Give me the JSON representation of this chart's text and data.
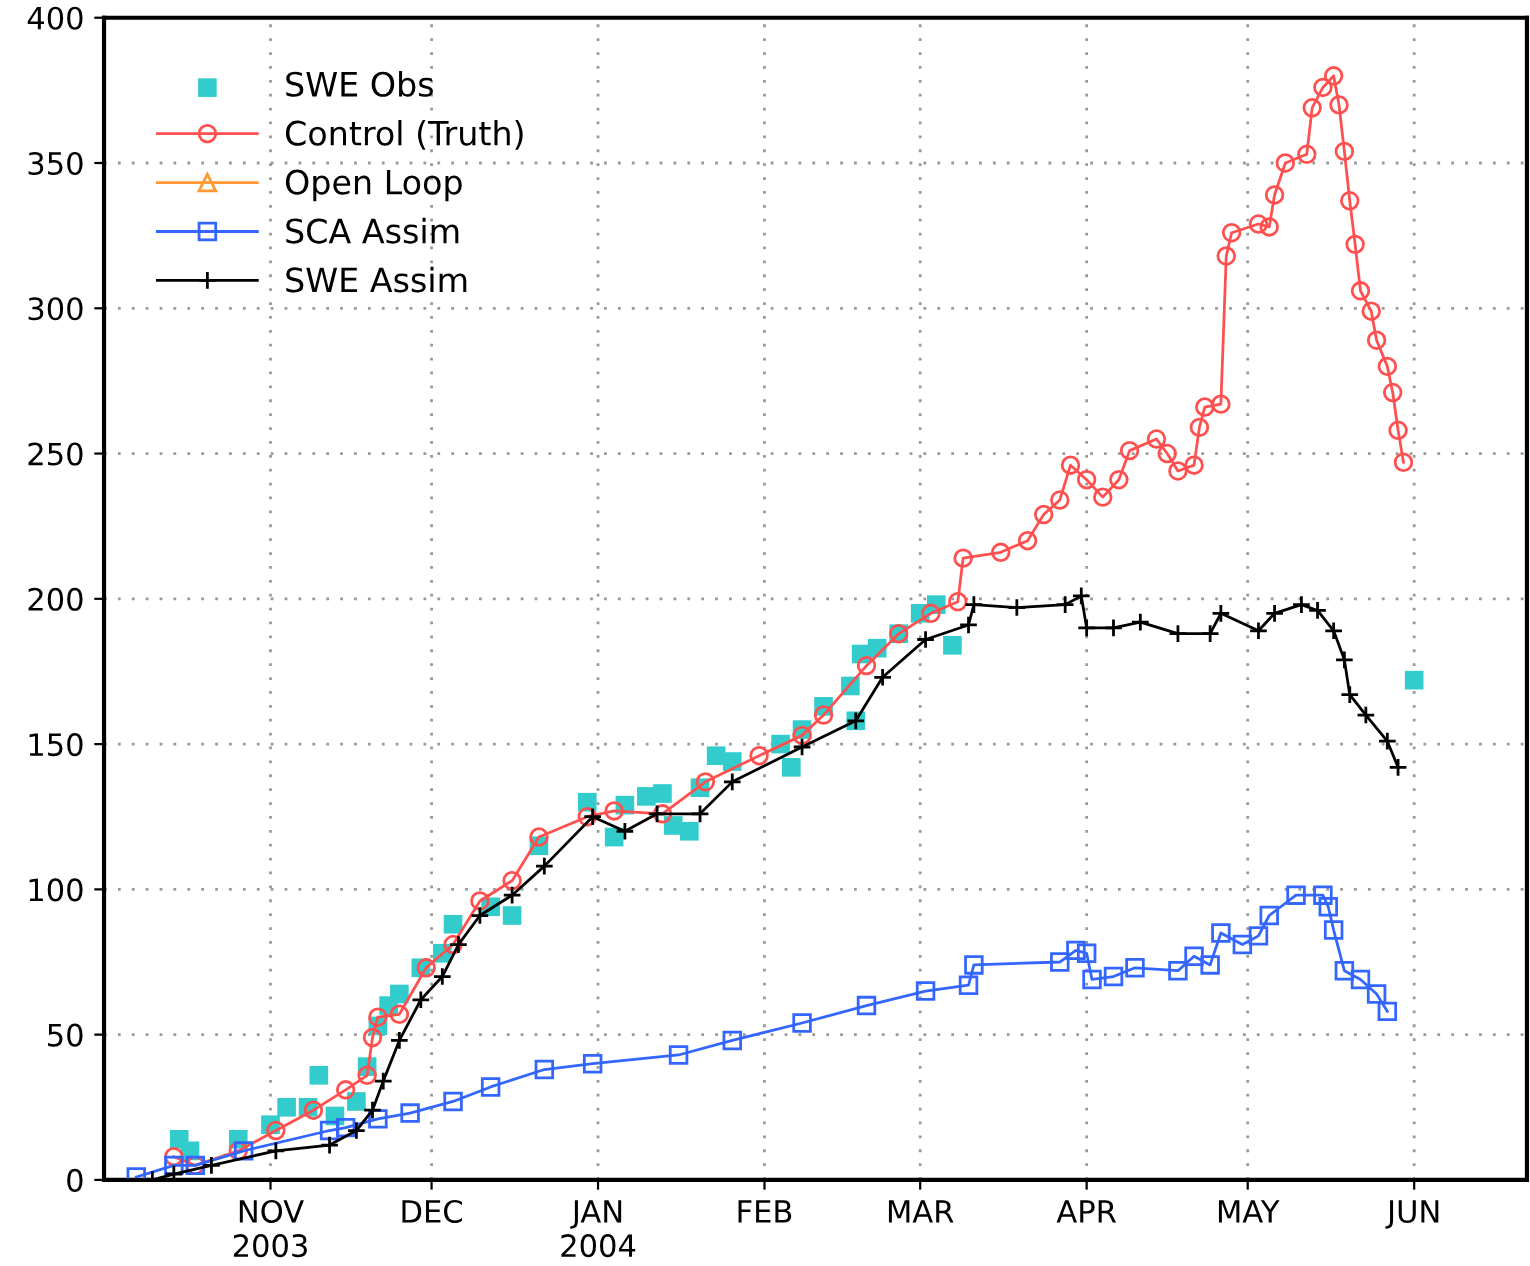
{
  "chart_data": {
    "type": "line",
    "xlim": [
      "2003-10-01",
      "2004-06-22"
    ],
    "xticks": [
      {
        "value": "2003-11-01",
        "label": "NOV\n2003"
      },
      {
        "value": "2003-12-01",
        "label": "DEC"
      },
      {
        "value": "2004-01-01",
        "label": "JAN\n2004"
      },
      {
        "value": "2004-02-01",
        "label": "FEB"
      },
      {
        "value": "2004-03-01",
        "label": "MAR"
      },
      {
        "value": "2004-04-01",
        "label": "APR"
      },
      {
        "value": "2004-05-01",
        "label": "MAY"
      },
      {
        "value": "2004-06-01",
        "label": "JUN"
      }
    ],
    "ylim": [
      0,
      400
    ],
    "yticks": [
      0,
      50,
      100,
      150,
      200,
      250,
      300,
      350,
      400
    ],
    "grid": true,
    "legend": "top left",
    "series": [
      {
        "name": "SWE Obs",
        "type": "scatter",
        "marker": "square",
        "color": "#33cccc",
        "x": [
          "2003-10-15",
          "2003-10-17",
          "2003-10-26",
          "2003-11-01",
          "2003-11-04",
          "2003-11-08",
          "2003-11-10",
          "2003-11-13",
          "2003-11-17",
          "2003-11-19",
          "2003-11-21",
          "2003-11-23",
          "2003-11-25",
          "2003-11-29",
          "2003-12-03",
          "2003-12-05",
          "2003-12-12",
          "2003-12-16",
          "2003-12-21",
          "2003-12-30",
          "2004-01-04",
          "2004-01-06",
          "2004-01-10",
          "2004-01-13",
          "2004-01-15",
          "2004-01-18",
          "2004-01-20",
          "2004-01-23",
          "2004-01-26",
          "2004-02-04",
          "2004-02-06",
          "2004-02-08",
          "2004-02-12",
          "2004-02-17",
          "2004-02-18",
          "2004-02-19",
          "2004-02-22",
          "2004-02-26",
          "2004-03-01",
          "2004-03-04",
          "2004-03-07",
          "2004-06-01"
        ],
        "values": [
          14,
          10,
          14,
          19,
          25,
          25,
          36,
          22,
          27,
          39,
          53,
          60,
          64,
          73,
          78,
          88,
          94,
          91,
          115,
          130,
          118,
          129,
          132,
          133,
          122,
          120,
          135,
          146,
          144,
          150,
          142,
          155,
          163,
          170,
          158,
          181,
          183,
          188,
          195,
          198,
          184,
          172
        ]
      },
      {
        "name": "Control (Truth)",
        "marker": "circle",
        "color": "#ff5050",
        "x": [
          "2003-10-14",
          "2003-10-18",
          "2003-10-26",
          "2003-11-02",
          "2003-11-09",
          "2003-11-15",
          "2003-11-19",
          "2003-11-20",
          "2003-11-21",
          "2003-11-25",
          "2003-11-30",
          "2003-12-05",
          "2003-12-10",
          "2003-12-16",
          "2003-12-21",
          "2003-12-30",
          "2004-01-04",
          "2004-01-13",
          "2004-01-21",
          "2004-01-31",
          "2004-02-08",
          "2004-02-12",
          "2004-02-20",
          "2004-02-26",
          "2004-03-03",
          "2004-03-08",
          "2004-03-09",
          "2004-03-16",
          "2004-03-21",
          "2004-03-24",
          "2004-03-27",
          "2004-03-29",
          "2004-04-01",
          "2004-04-04",
          "2004-04-07",
          "2004-04-09",
          "2004-04-14",
          "2004-04-16",
          "2004-04-18",
          "2004-04-21",
          "2004-04-22",
          "2004-04-23",
          "2004-04-26",
          "2004-04-27",
          "2004-04-28",
          "2004-05-03",
          "2004-05-05",
          "2004-05-06",
          "2004-05-08",
          "2004-05-12",
          "2004-05-13",
          "2004-05-15",
          "2004-05-17",
          "2004-05-18",
          "2004-05-19",
          "2004-05-20",
          "2004-05-21",
          "2004-05-22",
          "2004-05-24",
          "2004-05-25",
          "2004-05-27",
          "2004-05-28",
          "2004-05-29",
          "2004-05-30"
        ],
        "values": [
          8,
          5,
          10,
          17,
          24,
          31,
          36,
          49,
          56,
          57,
          73,
          81,
          96,
          103,
          118,
          125,
          127,
          126,
          137,
          146,
          153,
          160,
          177,
          188,
          195,
          199,
          214,
          216,
          220,
          229,
          234,
          246,
          241,
          235,
          241,
          251,
          255,
          250,
          244,
          246,
          259,
          266,
          267,
          318,
          326,
          329,
          328,
          339,
          350,
          353,
          369,
          376,
          380,
          370,
          354,
          337,
          322,
          306,
          299,
          289,
          280,
          271,
          258,
          247
        ]
      },
      {
        "name": "Open Loop",
        "marker": "triangle",
        "color": "#ff9933"
      },
      {
        "name": "SCA Assim",
        "marker": "square",
        "color": "#3366ff",
        "x": [
          "2003-10-07",
          "2003-10-14",
          "2003-10-18",
          "2003-10-27",
          "2003-11-12",
          "2003-11-15",
          "2003-11-21",
          "2003-11-27",
          "2003-12-05",
          "2003-12-12",
          "2003-12-22",
          "2003-12-31",
          "2004-01-16",
          "2004-01-26",
          "2004-02-08",
          "2004-02-20",
          "2004-03-02",
          "2004-03-10",
          "2004-03-11",
          "2004-03-27",
          "2004-03-30",
          "2004-04-01",
          "2004-04-02",
          "2004-04-06",
          "2004-04-10",
          "2004-04-18",
          "2004-04-21",
          "2004-04-24",
          "2004-04-26",
          "2004-04-30",
          "2004-05-03",
          "2004-05-05",
          "2004-05-10",
          "2004-05-15",
          "2004-05-16",
          "2004-05-17",
          "2004-05-19",
          "2004-05-22",
          "2004-05-25",
          "2004-05-27"
        ],
        "values": [
          1,
          5,
          5,
          10,
          17,
          18,
          21,
          23,
          27,
          32,
          38,
          40,
          43,
          48,
          54,
          60,
          65,
          67,
          74,
          75,
          79,
          78,
          69,
          70,
          73,
          72,
          77,
          74,
          85,
          81,
          84,
          91,
          98,
          98,
          94,
          86,
          72,
          69,
          64,
          58
        ]
      },
      {
        "name": "SWE Assim",
        "marker": "cross",
        "color": "#000000",
        "x": [
          "2003-10-01",
          "2003-10-10",
          "2003-10-14",
          "2003-10-21",
          "2003-11-02",
          "2003-11-12",
          "2003-11-17",
          "2003-11-20",
          "2003-11-22",
          "2003-11-25",
          "2003-11-29",
          "2003-12-03",
          "2003-12-06",
          "2003-12-10",
          "2003-12-16",
          "2003-12-22",
          "2003-12-31",
          "2004-01-06",
          "2004-01-12",
          "2004-01-20",
          "2004-01-26",
          "2004-02-08",
          "2004-02-18",
          "2004-02-23",
          "2004-03-02",
          "2004-03-10",
          "2004-03-11",
          "2004-03-19",
          "2004-03-28",
          "2004-03-31",
          "2004-04-01",
          "2004-04-06",
          "2004-04-11",
          "2004-04-18",
          "2004-04-24",
          "2004-04-26",
          "2004-05-03",
          "2004-05-06",
          "2004-05-11",
          "2004-05-14",
          "2004-05-17",
          "2004-05-19",
          "2004-05-20",
          "2004-05-23",
          "2004-05-27",
          "2004-05-29"
        ],
        "values": [
          0,
          0,
          2,
          5,
          10,
          12,
          17,
          24,
          34,
          48,
          62,
          70,
          81,
          91,
          98,
          108,
          125,
          120,
          126,
          126,
          137,
          149,
          158,
          173,
          186,
          191,
          198,
          197,
          198,
          201,
          190,
          190,
          192,
          188,
          188,
          195,
          189,
          195,
          198,
          196,
          189,
          179,
          167,
          160,
          151,
          142
        ]
      }
    ]
  }
}
